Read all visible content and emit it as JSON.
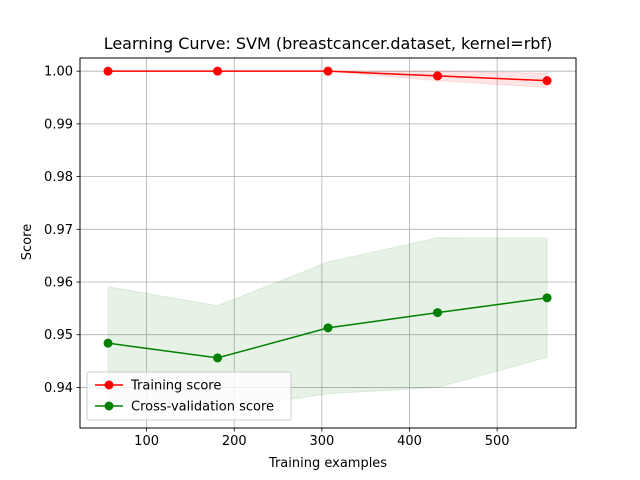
{
  "chart_data": {
    "type": "line",
    "title": "Learning Curve: SVM (breastcancer.dataset, kernel=rbf)",
    "xlabel": "Training examples",
    "ylabel": "Score",
    "xlim": [
      24,
      590
    ],
    "ylim": [
      0.9323,
      1.0025
    ],
    "xticks": [
      100,
      200,
      300,
      400,
      500
    ],
    "yticks": [
      0.94,
      0.95,
      0.96,
      0.97,
      0.98,
      0.99,
      1.0
    ],
    "ytick_labels": [
      "0.94",
      "0.95",
      "0.96",
      "0.97",
      "0.98",
      "0.99",
      "1.00"
    ],
    "grid": true,
    "legend_position": "lower-left",
    "x": [
      56,
      181,
      307,
      432,
      557
    ],
    "series": [
      {
        "name": "Training score",
        "color": "#ff0000",
        "band_color": "#ff0000",
        "values": [
          1.0,
          1.0,
          1.0,
          0.9991,
          0.9982
        ],
        "band_upper": [
          1.0,
          1.0,
          1.0,
          1.0,
          0.9996
        ],
        "band_lower": [
          1.0,
          1.0,
          1.0,
          0.9982,
          0.9969
        ]
      },
      {
        "name": "Cross-validation score",
        "color": "#008000",
        "band_color": "#008000",
        "values": [
          0.9484,
          0.9456,
          0.9513,
          0.9542,
          0.957
        ],
        "band_upper": [
          0.9591,
          0.9555,
          0.9638,
          0.9684,
          0.9683
        ],
        "band_lower": [
          0.9377,
          0.9357,
          0.9388,
          0.94,
          0.9457
        ]
      }
    ]
  }
}
